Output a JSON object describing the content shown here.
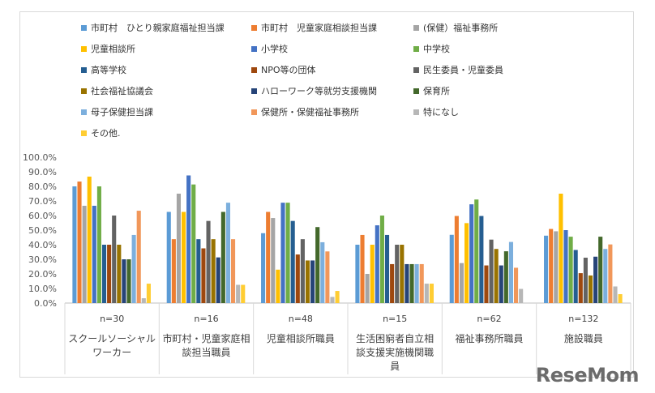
{
  "brand": "ReseMom",
  "chart_data": {
    "type": "bar",
    "ylim": [
      0,
      100
    ],
    "yticks": [
      "0.0%",
      "10.0%",
      "20.0%",
      "30.0%",
      "40.0%",
      "50.0%",
      "60.0%",
      "70.0%",
      "80.0%",
      "90.0%",
      "100.0%"
    ],
    "groups": [
      {
        "n": "n=30",
        "lines": [
          "スクールソーシャル",
          "ワーカー"
        ]
      },
      {
        "n": "n=16",
        "lines": [
          "市町村・児童家庭相",
          "談担当職員"
        ]
      },
      {
        "n": "n=48",
        "lines": [
          "児童相談所職員"
        ]
      },
      {
        "n": "n=15",
        "lines": [
          "生活困窮者自立相",
          "談支援実施機関職",
          "員"
        ]
      },
      {
        "n": "n=62",
        "lines": [
          "福祉事務所職員"
        ]
      },
      {
        "n": "n=132",
        "lines": [
          "施設職員"
        ]
      }
    ],
    "series": [
      {
        "name": "市町村　ひとり親家庭福祉担当課",
        "color": "#5b9bd5",
        "values": [
          80.0,
          62.5,
          47.9,
          40.0,
          46.8,
          46.2
        ]
      },
      {
        "name": "市町村　児童家庭相談担当課",
        "color": "#ed7d31",
        "values": [
          83.3,
          43.8,
          62.5,
          46.7,
          59.7,
          50.8
        ]
      },
      {
        "name": "(保健）福祉事務所",
        "color": "#a5a5a5",
        "values": [
          66.7,
          75.0,
          58.3,
          20.0,
          27.4,
          49.2
        ]
      },
      {
        "name": "児童相談所",
        "color": "#ffc000",
        "values": [
          86.7,
          62.5,
          22.9,
          40.0,
          54.8,
          75.0
        ]
      },
      {
        "name": "小学校",
        "color": "#4472c4",
        "values": [
          66.7,
          87.5,
          68.8,
          53.3,
          67.7,
          50.0
        ]
      },
      {
        "name": "中学校",
        "color": "#70ad47",
        "values": [
          80.0,
          81.3,
          68.8,
          60.0,
          71.0,
          45.5
        ]
      },
      {
        "name": "高等学校",
        "color": "#255e91",
        "values": [
          40.0,
          43.8,
          56.3,
          46.7,
          59.7,
          36.4
        ]
      },
      {
        "name": "NPO等の団体",
        "color": "#9e480e",
        "values": [
          40.0,
          37.5,
          33.3,
          26.7,
          25.8,
          20.5
        ]
      },
      {
        "name": "民生委員・児童委員",
        "color": "#636363",
        "values": [
          60.0,
          56.3,
          43.8,
          40.0,
          43.5,
          31.1
        ]
      },
      {
        "name": "社会福祉協議会",
        "color": "#997300",
        "values": [
          40.0,
          43.8,
          29.2,
          40.0,
          37.1,
          18.9
        ]
      },
      {
        "name": "ハローワーク等就労支援機関",
        "color": "#264478",
        "values": [
          30.0,
          31.3,
          29.2,
          26.7,
          25.8,
          31.8
        ]
      },
      {
        "name": "保育所",
        "color": "#43682b",
        "values": [
          30.0,
          62.5,
          52.1,
          26.7,
          35.5,
          45.5
        ]
      },
      {
        "name": "母子保健担当課",
        "color": "#7cafdd",
        "values": [
          46.7,
          68.8,
          41.7,
          26.7,
          41.9,
          37.1
        ]
      },
      {
        "name": "保健所・保健福祉事務所",
        "color": "#f1975a",
        "values": [
          63.3,
          43.8,
          35.4,
          26.7,
          24.2,
          40.2
        ]
      },
      {
        "name": "特になし",
        "color": "#b7b7b7",
        "values": [
          3.3,
          12.5,
          4.2,
          13.3,
          9.7,
          11.4
        ]
      },
      {
        "name": "その他.",
        "color": "#ffcd33",
        "values": [
          13.3,
          12.5,
          8.3,
          13.3,
          0.0,
          6.1
        ]
      }
    ]
  }
}
